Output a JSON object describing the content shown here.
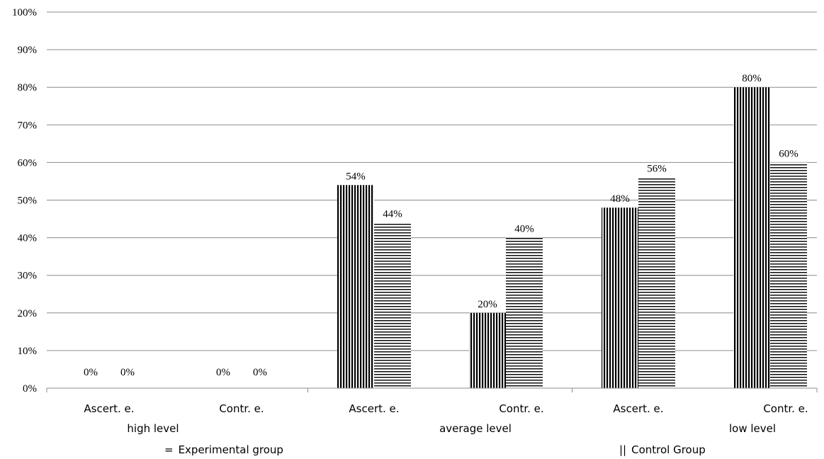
{
  "chart_data": {
    "type": "bar",
    "ylim": [
      0,
      100
    ],
    "y_ticks": [
      "0%",
      "10%",
      "20%",
      "30%",
      "40%",
      "50%",
      "60%",
      "70%",
      "80%",
      "90%",
      "100%"
    ],
    "grid": true,
    "categories": [
      "Ascert. e.",
      "Contr. e.",
      "Ascert. e.",
      "Contr. e.",
      "Ascert. e.",
      "Contr. e."
    ],
    "level_labels": [
      "high level",
      "average level",
      "low level"
    ],
    "series": [
      {
        "name": "Experimental group",
        "legend_symbol": "=",
        "values": [
          0,
          0,
          54,
          20,
          48,
          80
        ]
      },
      {
        "name": "Control Group",
        "legend_symbol": "||",
        "values": [
          0,
          0,
          44,
          40,
          56,
          60
        ]
      }
    ],
    "data_labels": [
      [
        "0%",
        "0%",
        "54%",
        "20%",
        "48%",
        "80%"
      ],
      [
        "0%",
        "0%",
        "44%",
        "40%",
        "56%",
        "60%"
      ]
    ],
    "legend": {
      "position": "bottom"
    }
  }
}
